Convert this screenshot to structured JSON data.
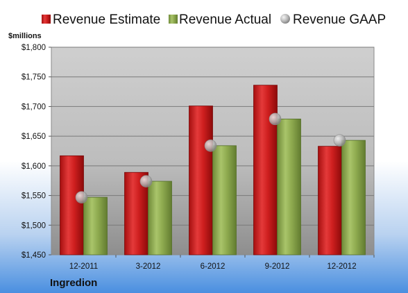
{
  "chart_data": {
    "type": "bar",
    "unit_label": "$millions",
    "company": "Ingredion",
    "categories": [
      "12-2011",
      "3-2012",
      "6-2012",
      "9-2012",
      "12-2012"
    ],
    "series": [
      {
        "name": "Revenue Estimate",
        "kind": "bar",
        "color": "#cc1f1f",
        "values": [
          1617,
          1589,
          1701,
          1736,
          1633
        ]
      },
      {
        "name": "Revenue Actual",
        "kind": "bar",
        "color": "#8faa4f",
        "values": [
          1547,
          1574,
          1634,
          1679,
          1643
        ]
      },
      {
        "name": "Revenue GAAP",
        "kind": "marker",
        "color": "#b8b8b8",
        "values": [
          1547,
          1574,
          1634,
          1679,
          1643
        ]
      }
    ],
    "ylim": [
      1450,
      1800
    ],
    "yticks": [
      "$1,450",
      "$1,500",
      "$1,550",
      "$1,600",
      "$1,650",
      "$1,700",
      "$1,750",
      "$1,800"
    ],
    "ytick_values": [
      1450,
      1500,
      1550,
      1600,
      1650,
      1700,
      1750,
      1800
    ],
    "grid": true,
    "legend_position": "top"
  }
}
